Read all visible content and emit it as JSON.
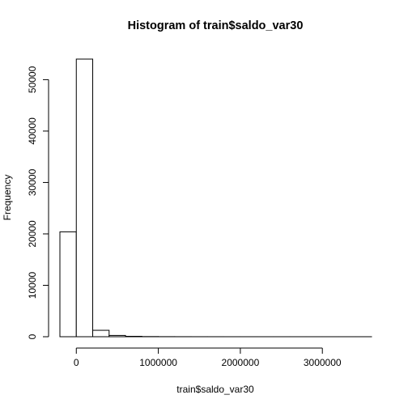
{
  "chart_data": {
    "type": "bar",
    "title": "Histogram of train$saldo_var30",
    "xlabel": "train$saldo_var30",
    "ylabel": "Frequency",
    "bins": [
      {
        "from": -200000,
        "to": 0,
        "count": 20400
      },
      {
        "from": 0,
        "to": 200000,
        "count": 54000
      },
      {
        "from": 200000,
        "to": 400000,
        "count": 1250
      },
      {
        "from": 400000,
        "to": 600000,
        "count": 250
      },
      {
        "from": 600000,
        "to": 800000,
        "count": 80
      },
      {
        "from": 800000,
        "to": 1000000,
        "count": 30
      },
      {
        "from": 1000000,
        "to": 1200000,
        "count": 15
      },
      {
        "from": 1200000,
        "to": 1400000,
        "count": 8
      },
      {
        "from": 1400000,
        "to": 1600000,
        "count": 5
      },
      {
        "from": 1600000,
        "to": 1800000,
        "count": 3
      },
      {
        "from": 1800000,
        "to": 2000000,
        "count": 2
      },
      {
        "from": 2000000,
        "to": 2200000,
        "count": 2
      },
      {
        "from": 2200000,
        "to": 2400000,
        "count": 1
      },
      {
        "from": 2400000,
        "to": 2600000,
        "count": 1
      },
      {
        "from": 2600000,
        "to": 2800000,
        "count": 1
      },
      {
        "from": 2800000,
        "to": 3000000,
        "count": 1
      },
      {
        "from": 3000000,
        "to": 3200000,
        "count": 1
      },
      {
        "from": 3200000,
        "to": 3400000,
        "count": 1
      },
      {
        "from": 3400000,
        "to": 3600000,
        "count": 1
      }
    ],
    "xticks": [
      0,
      1000000,
      2000000,
      3000000
    ],
    "xtick_labels": [
      "0",
      "1000000",
      "2000000",
      "3000000"
    ],
    "yticks": [
      0,
      10000,
      20000,
      30000,
      40000,
      50000
    ],
    "ytick_labels": [
      "0",
      "10000",
      "20000",
      "30000",
      "40000",
      "50000"
    ],
    "xlim": [
      -200000,
      3600000
    ],
    "ylim": [
      0,
      54000
    ],
    "grid": false,
    "legend": "none"
  }
}
